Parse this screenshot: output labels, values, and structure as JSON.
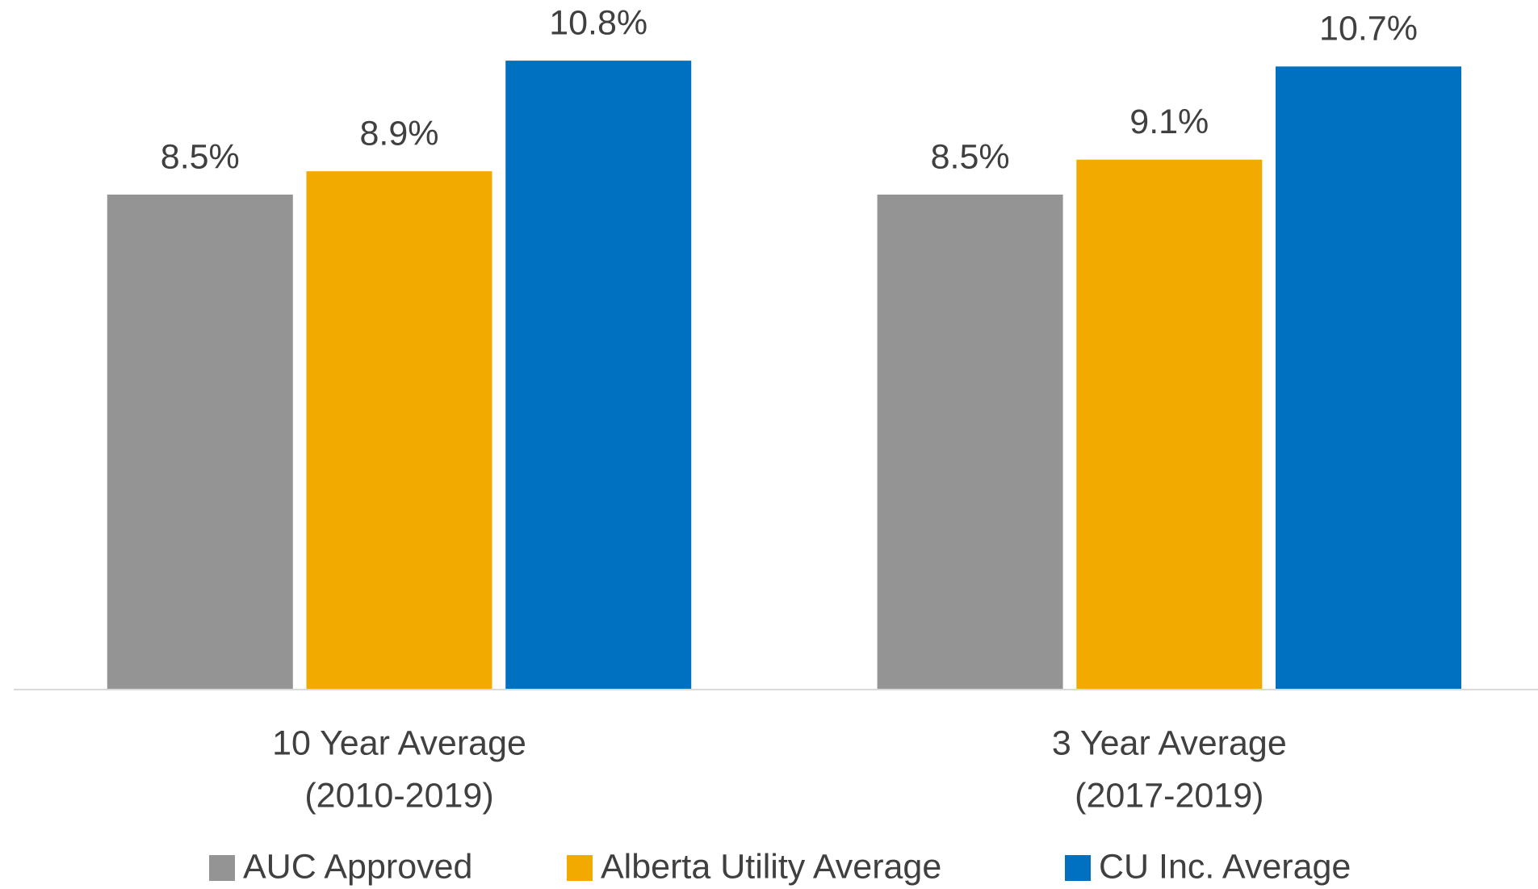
{
  "chart_data": {
    "type": "bar",
    "categories": [
      [
        "10 Year Average",
        "(2010-2019)"
      ],
      [
        "3 Year Average",
        "(2017-2019)"
      ]
    ],
    "series": [
      {
        "name": "AUC Approved",
        "color": "#949494",
        "values": [
          8.5,
          8.5
        ],
        "value_labels": [
          "8.5%",
          "8.5%"
        ]
      },
      {
        "name": "Alberta Utility Average",
        "color": "#f2aa00",
        "values": [
          8.9,
          9.1
        ],
        "value_labels": [
          "8.9%",
          "9.1%"
        ]
      },
      {
        "name": "CU Inc. Average",
        "color": "#0070c0",
        "values": [
          10.8,
          10.7
        ],
        "value_labels": [
          "10.8%",
          "10.7%"
        ]
      }
    ],
    "ylim": [
      0,
      11.8
    ],
    "legend": "bottom"
  }
}
